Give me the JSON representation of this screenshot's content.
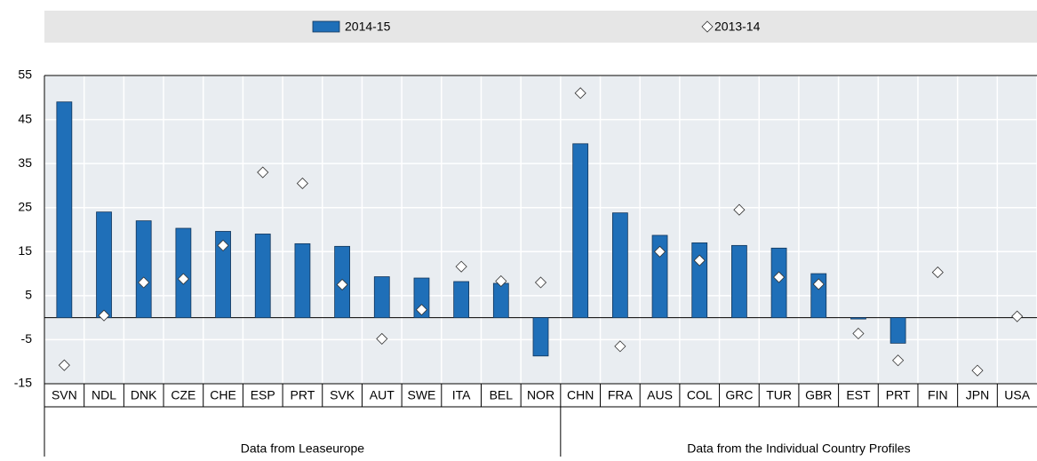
{
  "chart_data": {
    "type": "bar",
    "groups": [
      {
        "label": "Data from Leaseurope",
        "categories": [
          "SVN",
          "NDL",
          "DNK",
          "CZE",
          "CHE",
          "ESP",
          "PRT",
          "SVK",
          "AUT",
          "SWE",
          "ITA",
          "BEL",
          "NOR"
        ]
      },
      {
        "label": "Data from the Individual Country Profiles",
        "categories": [
          "CHN",
          "FRA",
          "AUS",
          "COL",
          "GRC",
          "TUR",
          "GBR",
          "EST",
          "PRT",
          "FIN",
          "JPN",
          "USA"
        ]
      }
    ],
    "series": [
      {
        "name": "2014-15",
        "color": "#1f6fb8",
        "marker": "bar",
        "values": [
          49,
          24,
          22,
          20.3,
          19.6,
          19,
          16.8,
          16.2,
          9.3,
          9,
          8.2,
          7.8,
          -8.7,
          39.5,
          23.8,
          18.7,
          17,
          16.4,
          15.8,
          10,
          -0.3,
          -5.8,
          null,
          null,
          null
        ]
      },
      {
        "name": "2013-14",
        "color": "#ffffff",
        "marker": "diamond",
        "values": [
          -10.8,
          0.5,
          8,
          8.8,
          16.4,
          33,
          30.5,
          7.5,
          -4.8,
          1.8,
          11.6,
          8.3,
          8,
          51,
          -6.5,
          15,
          13,
          24.5,
          9.2,
          7.6,
          -3.6,
          -9.7,
          10.3,
          -12,
          0.3
        ]
      }
    ],
    "ylim": [
      -15,
      55
    ],
    "yticks": [
      55,
      45,
      35,
      25,
      15,
      5,
      -5,
      -15
    ],
    "grid": true
  }
}
